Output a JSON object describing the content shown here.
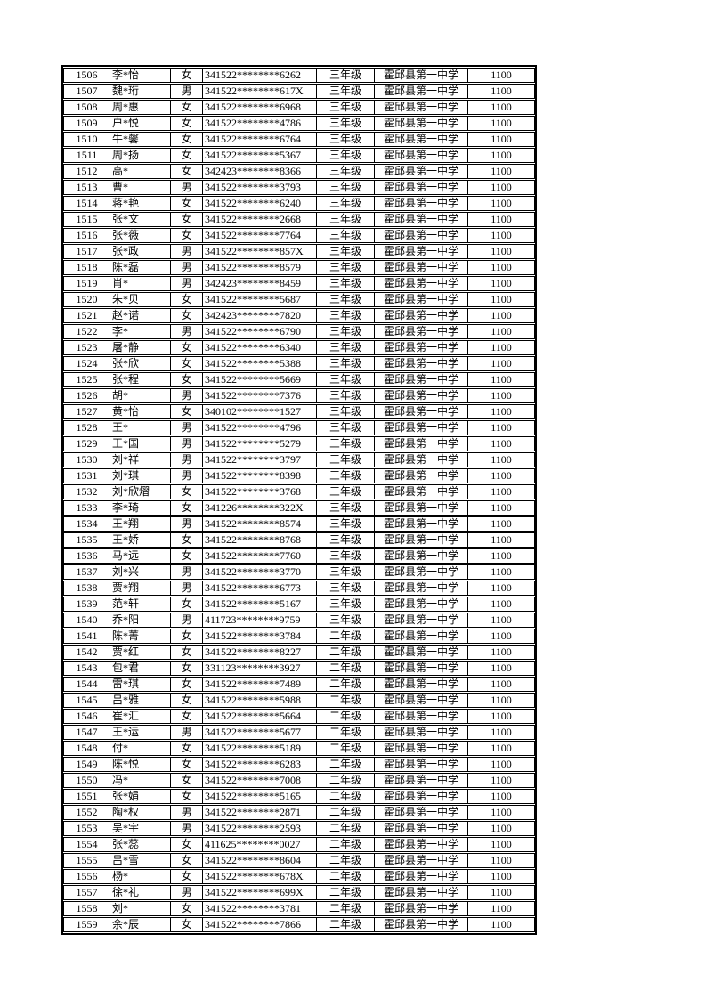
{
  "page": {
    "background_color": "#ffffff",
    "text_color": "#000000",
    "border_color": "#000000"
  },
  "table": {
    "description": "student-funding-roster",
    "rows": [
      [
        "1506",
        "李*怡",
        "女",
        "341522********6262",
        "三年级",
        "霍邱县第一中学",
        "1100"
      ],
      [
        "1507",
        "魏*珩",
        "男",
        "341522********617X",
        "三年级",
        "霍邱县第一中学",
        "1100"
      ],
      [
        "1508",
        "周*惠",
        "女",
        "341522********6968",
        "三年级",
        "霍邱县第一中学",
        "1100"
      ],
      [
        "1509",
        "户*悦",
        "女",
        "341522********4786",
        "三年级",
        "霍邱县第一中学",
        "1100"
      ],
      [
        "1510",
        "牛*馨",
        "女",
        "341522********6764",
        "三年级",
        "霍邱县第一中学",
        "1100"
      ],
      [
        "1511",
        "周*扬",
        "女",
        "341522********5367",
        "三年级",
        "霍邱县第一中学",
        "1100"
      ],
      [
        "1512",
        "高*",
        "女",
        "342423********8366",
        "三年级",
        "霍邱县第一中学",
        "1100"
      ],
      [
        "1513",
        "曹*",
        "男",
        "341522********3793",
        "三年级",
        "霍邱县第一中学",
        "1100"
      ],
      [
        "1514",
        "蒋*艳",
        "女",
        "341522********6240",
        "三年级",
        "霍邱县第一中学",
        "1100"
      ],
      [
        "1515",
        "张*文",
        "女",
        "341522********2668",
        "三年级",
        "霍邱县第一中学",
        "1100"
      ],
      [
        "1516",
        "张*薇",
        "女",
        "341522********7764",
        "三年级",
        "霍邱县第一中学",
        "1100"
      ],
      [
        "1517",
        "张*政",
        "男",
        "341522********857X",
        "三年级",
        "霍邱县第一中学",
        "1100"
      ],
      [
        "1518",
        "陈*磊",
        "男",
        "341522********8579",
        "三年级",
        "霍邱县第一中学",
        "1100"
      ],
      [
        "1519",
        "肖*",
        "男",
        "342423********8459",
        "三年级",
        "霍邱县第一中学",
        "1100"
      ],
      [
        "1520",
        "朱*贝",
        "女",
        "341522********5687",
        "三年级",
        "霍邱县第一中学",
        "1100"
      ],
      [
        "1521",
        "赵*诺",
        "女",
        "342423********7820",
        "三年级",
        "霍邱县第一中学",
        "1100"
      ],
      [
        "1522",
        "李*",
        "男",
        "341522********6790",
        "三年级",
        "霍邱县第一中学",
        "1100"
      ],
      [
        "1523",
        "屠*静",
        "女",
        "341522********6340",
        "三年级",
        "霍邱县第一中学",
        "1100"
      ],
      [
        "1524",
        "张*欣",
        "女",
        "341522********5388",
        "三年级",
        "霍邱县第一中学",
        "1100"
      ],
      [
        "1525",
        "张*程",
        "女",
        "341522********5669",
        "三年级",
        "霍邱县第一中学",
        "1100"
      ],
      [
        "1526",
        "胡*",
        "男",
        "341522********7376",
        "三年级",
        "霍邱县第一中学",
        "1100"
      ],
      [
        "1527",
        "黄*怡",
        "女",
        "340102********1527",
        "三年级",
        "霍邱县第一中学",
        "1100"
      ],
      [
        "1528",
        "王*",
        "男",
        "341522********4796",
        "三年级",
        "霍邱县第一中学",
        "1100"
      ],
      [
        "1529",
        "王*国",
        "男",
        "341522********5279",
        "三年级",
        "霍邱县第一中学",
        "1100"
      ],
      [
        "1530",
        "刘*祥",
        "男",
        "341522********3797",
        "三年级",
        "霍邱县第一中学",
        "1100"
      ],
      [
        "1531",
        "刘*琪",
        "男",
        "341522********8398",
        "三年级",
        "霍邱县第一中学",
        "1100"
      ],
      [
        "1532",
        "刘*欣熠",
        "女",
        "341522********3768",
        "三年级",
        "霍邱县第一中学",
        "1100"
      ],
      [
        "1533",
        "李*琦",
        "女",
        "341226********322X",
        "三年级",
        "霍邱县第一中学",
        "1100"
      ],
      [
        "1534",
        "王*翔",
        "男",
        "341522********8574",
        "三年级",
        "霍邱县第一中学",
        "1100"
      ],
      [
        "1535",
        "王*娇",
        "女",
        "341522********8768",
        "三年级",
        "霍邱县第一中学",
        "1100"
      ],
      [
        "1536",
        "马*远",
        "女",
        "341522********7760",
        "三年级",
        "霍邱县第一中学",
        "1100"
      ],
      [
        "1537",
        "刘*兴",
        "男",
        "341522********3770",
        "三年级",
        "霍邱县第一中学",
        "1100"
      ],
      [
        "1538",
        "贾*翔",
        "男",
        "341522********6773",
        "三年级",
        "霍邱县第一中学",
        "1100"
      ],
      [
        "1539",
        "范*轩",
        "女",
        "341522********5167",
        "三年级",
        "霍邱县第一中学",
        "1100"
      ],
      [
        "1540",
        "乔*阳",
        "男",
        "411723********9759",
        "三年级",
        "霍邱县第一中学",
        "1100"
      ],
      [
        "1541",
        "陈*菁",
        "女",
        "341522********3784",
        "二年级",
        "霍邱县第一中学",
        "1100"
      ],
      [
        "1542",
        "贾*红",
        "女",
        "341522********8227",
        "二年级",
        "霍邱县第一中学",
        "1100"
      ],
      [
        "1543",
        "包*君",
        "女",
        "331123********3927",
        "二年级",
        "霍邱县第一中学",
        "1100"
      ],
      [
        "1544",
        "雷*琪",
        "女",
        "341522********7489",
        "二年级",
        "霍邱县第一中学",
        "1100"
      ],
      [
        "1545",
        "吕*雅",
        "女",
        "341522********5988",
        "二年级",
        "霍邱县第一中学",
        "1100"
      ],
      [
        "1546",
        "崔*汇",
        "女",
        "341522********5664",
        "二年级",
        "霍邱县第一中学",
        "1100"
      ],
      [
        "1547",
        "王*运",
        "男",
        "341522********5677",
        "二年级",
        "霍邱县第一中学",
        "1100"
      ],
      [
        "1548",
        "付*",
        "女",
        "341522********5189",
        "二年级",
        "霍邱县第一中学",
        "1100"
      ],
      [
        "1549",
        "陈*悦",
        "女",
        "341522********6283",
        "二年级",
        "霍邱县第一中学",
        "1100"
      ],
      [
        "1550",
        "冯*",
        "女",
        "341522********7008",
        "二年级",
        "霍邱县第一中学",
        "1100"
      ],
      [
        "1551",
        "张*娟",
        "女",
        "341522********5165",
        "二年级",
        "霍邱县第一中学",
        "1100"
      ],
      [
        "1552",
        "陶*权",
        "男",
        "341522********2871",
        "二年级",
        "霍邱县第一中学",
        "1100"
      ],
      [
        "1553",
        "吴*宇",
        "男",
        "341522********2593",
        "二年级",
        "霍邱县第一中学",
        "1100"
      ],
      [
        "1554",
        "张*蕊",
        "女",
        "411625********0027",
        "二年级",
        "霍邱县第一中学",
        "1100"
      ],
      [
        "1555",
        "吕*雪",
        "女",
        "341522********8604",
        "二年级",
        "霍邱县第一中学",
        "1100"
      ],
      [
        "1556",
        "杨*",
        "女",
        "341522********678X",
        "二年级",
        "霍邱县第一中学",
        "1100"
      ],
      [
        "1557",
        "徐*礼",
        "男",
        "341522********699X",
        "二年级",
        "霍邱县第一中学",
        "1100"
      ],
      [
        "1558",
        "刘*",
        "女",
        "341522********3781",
        "二年级",
        "霍邱县第一中学",
        "1100"
      ],
      [
        "1559",
        "余*辰",
        "女",
        "341522********7866",
        "二年级",
        "霍邱县第一中学",
        "1100"
      ]
    ]
  }
}
